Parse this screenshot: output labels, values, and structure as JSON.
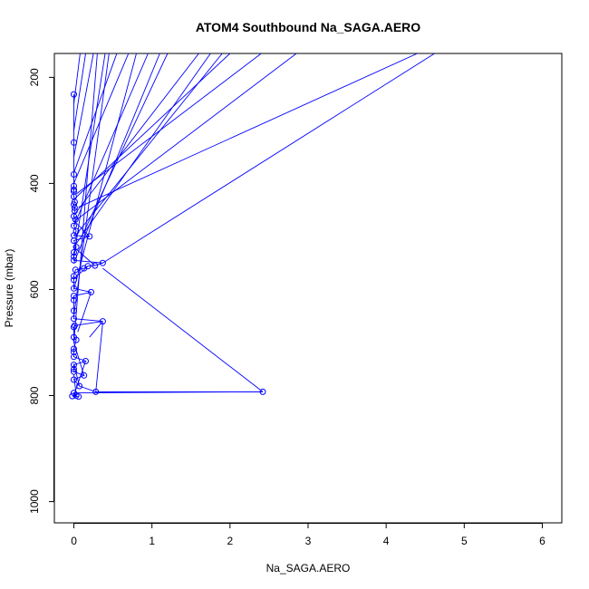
{
  "chart_data": {
    "type": "line",
    "title": "ATOM4 Southbound Na_SAGA.AERO",
    "xlabel": "Na_SAGA.AERO",
    "ylabel": "Pressure (mbar)",
    "xlim": [
      -0.25,
      6.25
    ],
    "ylim": [
      1040,
      155
    ],
    "y_reversed": true,
    "xticks": [
      0,
      1,
      2,
      3,
      4,
      5,
      6
    ],
    "yticks": [
      200,
      400,
      600,
      800,
      1000
    ],
    "series_color": "#0000ff",
    "marker": "open-circle",
    "points": [
      [
        0.0,
        232
      ],
      [
        0.0,
        323
      ],
      [
        0.0,
        383
      ],
      [
        0.0,
        405
      ],
      [
        0.0,
        415
      ],
      [
        0.0,
        440
      ],
      [
        0.01,
        446
      ],
      [
        0.01,
        452
      ],
      [
        0.02,
        468
      ],
      [
        0.0,
        480
      ],
      [
        0.03,
        490
      ],
      [
        0.2,
        500
      ],
      [
        0.0,
        508
      ],
      [
        0.03,
        520
      ],
      [
        0.0,
        538
      ],
      [
        0.0,
        545
      ],
      [
        0.37,
        550
      ],
      [
        0.27,
        555
      ],
      [
        0.18,
        556
      ],
      [
        0.13,
        560
      ],
      [
        0.02,
        563
      ],
      [
        0.0,
        582
      ],
      [
        0.0,
        598
      ],
      [
        0.22,
        605
      ],
      [
        0.0,
        612
      ],
      [
        0.0,
        640
      ],
      [
        0.37,
        660
      ],
      [
        0.01,
        668
      ],
      [
        0.0,
        671
      ],
      [
        0.03,
        695
      ],
      [
        0.0,
        712
      ],
      [
        0.0,
        727
      ],
      [
        0.15,
        735
      ],
      [
        0.0,
        742
      ],
      [
        0.0,
        750
      ],
      [
        0.0,
        755
      ],
      [
        0.13,
        762
      ],
      [
        0.0,
        770
      ],
      [
        0.07,
        782
      ],
      [
        0.28,
        793
      ],
      [
        2.42,
        793
      ],
      [
        0.0,
        795
      ],
      [
        0.03,
        800
      ],
      [
        0.06,
        802
      ],
      [
        -0.02,
        801
      ],
      [
        0.0,
        412
      ],
      [
        0.0,
        425
      ],
      [
        0.01,
        435
      ],
      [
        0.0,
        462
      ],
      [
        0.0,
        498
      ],
      [
        0.0,
        530
      ],
      [
        0.0,
        575
      ],
      [
        0.0,
        620
      ],
      [
        0.0,
        655
      ],
      [
        0.0,
        690
      ],
      [
        0.0,
        718
      ]
    ],
    "segments": [
      [
        [
          0.37,
          550
        ],
        [
          4.62,
          155
        ]
      ],
      [
        [
          0.06,
          445
        ],
        [
          4.4,
          155
        ]
      ],
      [
        [
          0.02,
          470
        ],
        [
          2.85,
          155
        ]
      ],
      [
        [
          0.01,
          500
        ],
        [
          1.9,
          155
        ]
      ],
      [
        [
          0.0,
          520
        ],
        [
          1.75,
          155
        ]
      ],
      [
        [
          0.0,
          430
        ],
        [
          2.0,
          155
        ]
      ],
      [
        [
          0.03,
          420
        ],
        [
          2.4,
          155
        ]
      ],
      [
        [
          0.0,
          460
        ],
        [
          1.6,
          155
        ]
      ],
      [
        [
          0.1,
          500
        ],
        [
          1.2,
          155
        ]
      ],
      [
        [
          0.0,
          550
        ],
        [
          1.1,
          155
        ]
      ],
      [
        [
          0.0,
          400
        ],
        [
          0.7,
          155
        ]
      ],
      [
        [
          0.0,
          380
        ],
        [
          0.55,
          155
        ]
      ],
      [
        [
          0.0,
          600
        ],
        [
          0.8,
          155
        ]
      ],
      [
        [
          0.0,
          650
        ],
        [
          0.45,
          155
        ]
      ],
      [
        [
          0.0,
          700
        ],
        [
          0.3,
          155
        ]
      ],
      [
        [
          0.0,
          480
        ],
        [
          0.95,
          155
        ]
      ],
      [
        [
          0.0,
          540
        ],
        [
          0.4,
          155
        ]
      ],
      [
        [
          0.0,
          350
        ],
        [
          0.25,
          155
        ]
      ],
      [
        [
          0.0,
          300
        ],
        [
          0.15,
          155
        ]
      ],
      [
        [
          0.0,
          250
        ],
        [
          0.08,
          155
        ]
      ],
      [
        [
          0.37,
          560
        ],
        [
          2.42,
          793
        ]
      ],
      [
        [
          0.28,
          793
        ],
        [
          2.42,
          793
        ]
      ],
      [
        [
          0.37,
          660
        ],
        [
          0.2,
          690
        ]
      ],
      [
        [
          0.37,
          662
        ],
        [
          0.28,
          793
        ]
      ],
      [
        [
          0.18,
          556
        ],
        [
          0.0,
          580
        ]
      ],
      [
        [
          0.27,
          555
        ],
        [
          0.0,
          520
        ]
      ],
      [
        [
          0.22,
          605
        ],
        [
          0.05,
          680
        ]
      ],
      [
        [
          0.15,
          735
        ],
        [
          0.0,
          800
        ]
      ],
      [
        [
          0.13,
          762
        ],
        [
          0.0,
          700
        ]
      ],
      [
        [
          0.2,
          500
        ],
        [
          0.0,
          470
        ]
      ],
      [
        [
          0.07,
          782
        ],
        [
          0.0,
          740
        ]
      ],
      [
        [
          0.03,
          800
        ],
        [
          0.0,
          760
        ]
      ]
    ]
  }
}
